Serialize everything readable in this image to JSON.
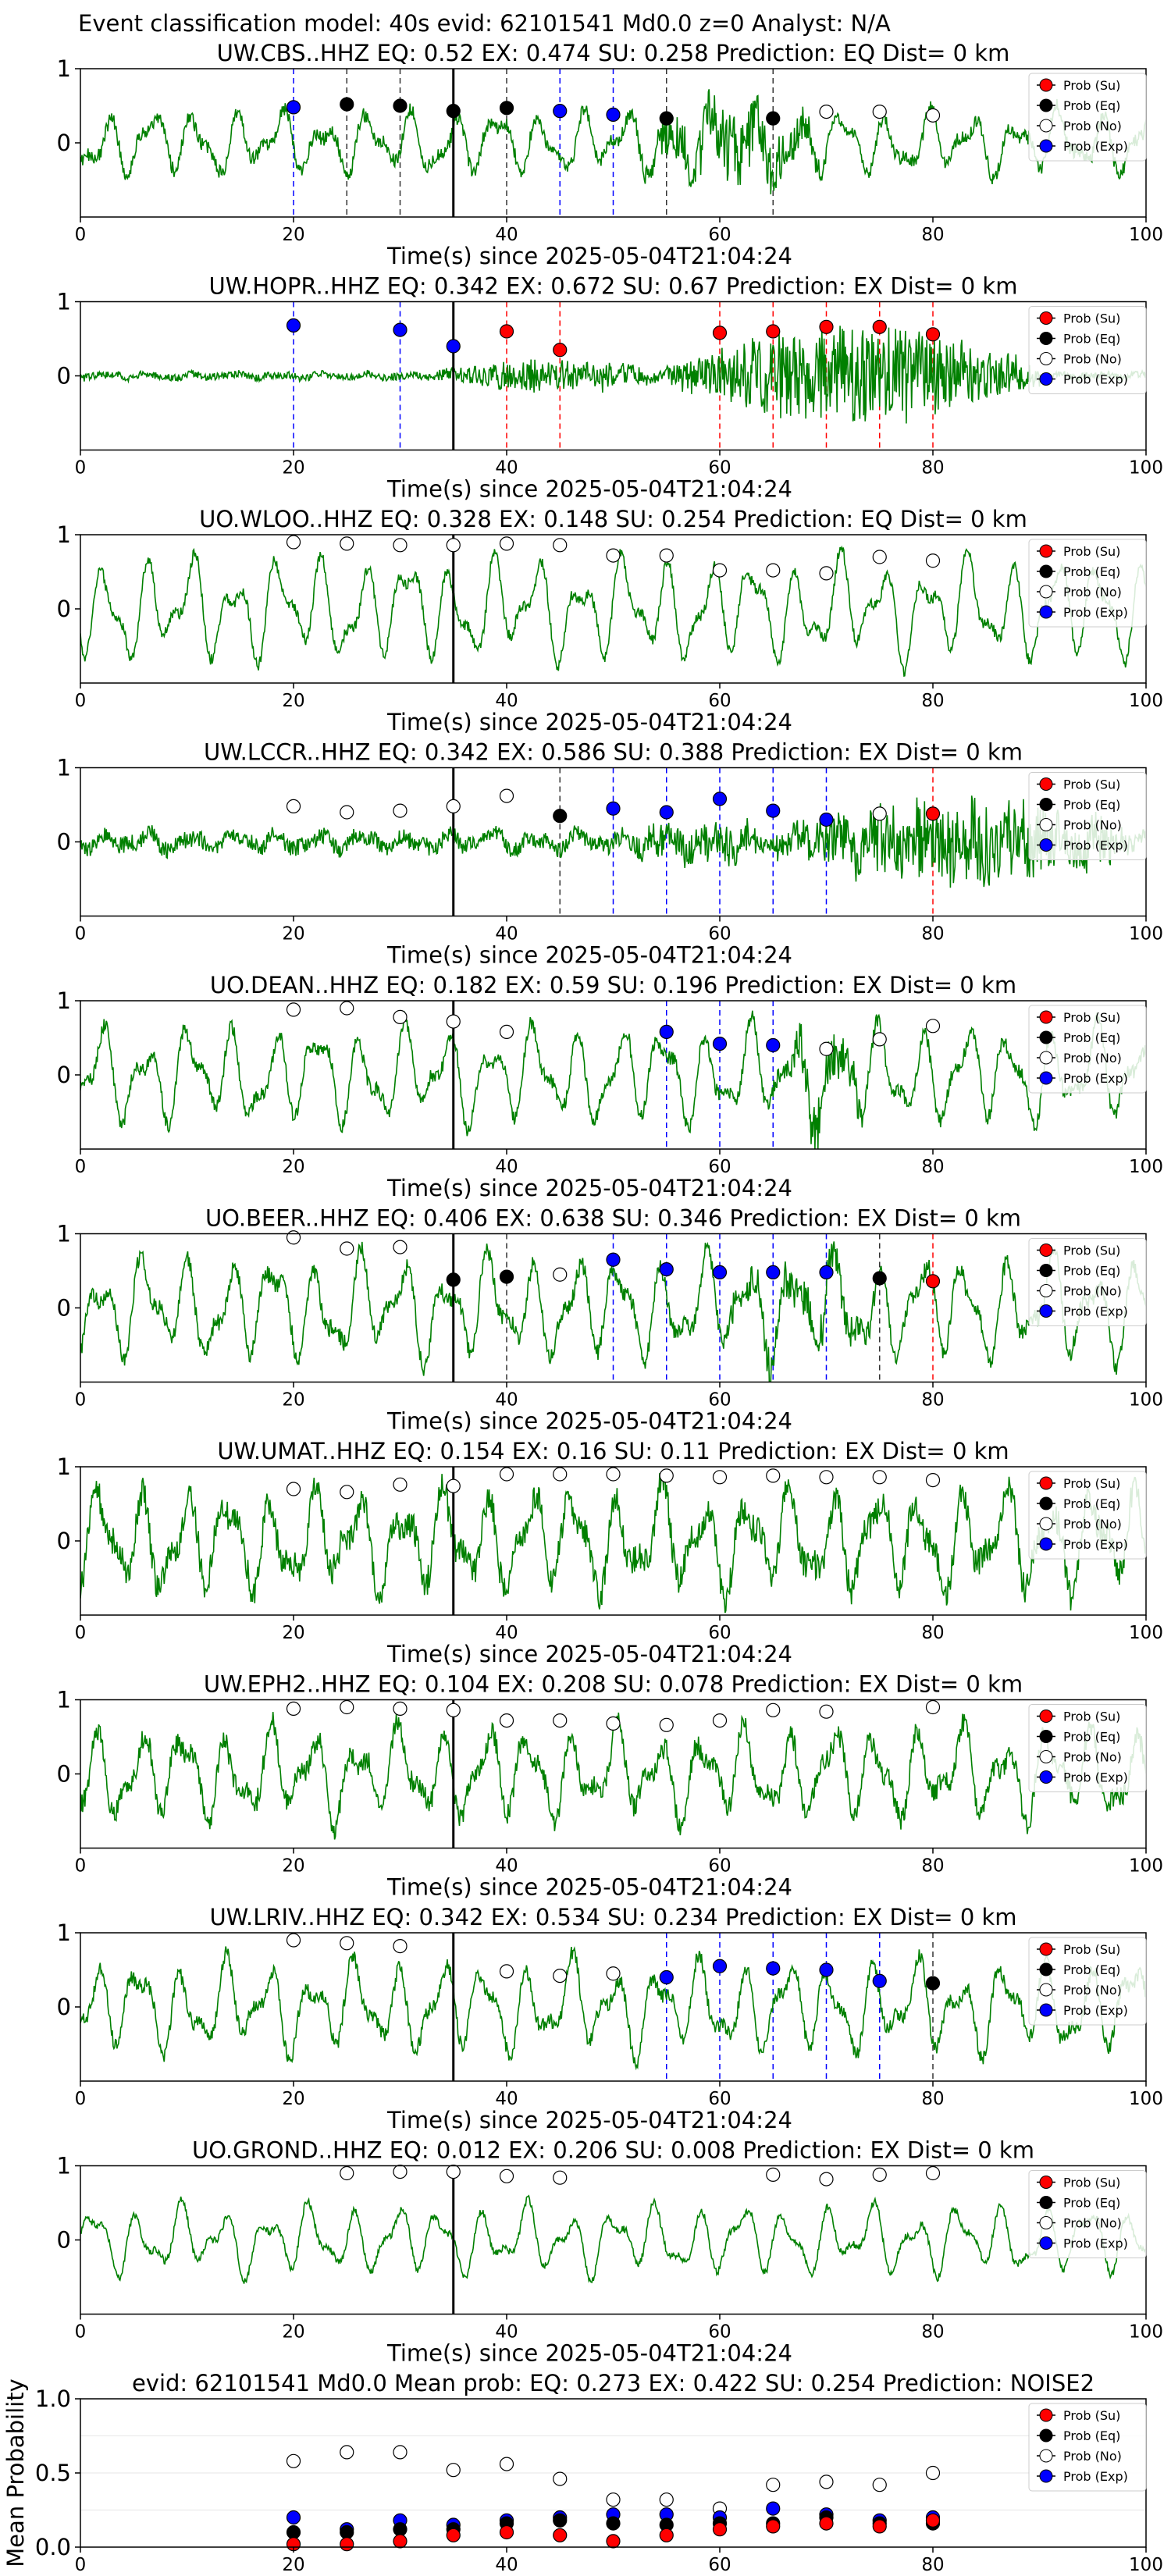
{
  "suptitle": "Event classification model: 40s evid: 62101541 Md0.0 z=0 Analyst: N/A",
  "legend_labels": [
    "Prob (Su)",
    "Prob (Eq)",
    "Prob (No)",
    "Prob (Exp)"
  ],
  "colors": {
    "Su": "#ff0000",
    "Eq": "#000000",
    "No": "#ffffff",
    "Exp": "#0000ff",
    "waveform": "#008000"
  },
  "xlabel": "Time(s) since 2025-05-04T21:04:24",
  "chart_data": [
    {
      "type": "line",
      "station": "UW.CBS..HHZ",
      "title": "UW.CBS..HHZ   EQ: 0.52   EX: 0.474   SU: 0.258   Prediction: EQ    Dist= 0 km",
      "xlim": [
        0,
        100
      ],
      "ylim": [
        -1,
        1
      ],
      "xticks": [
        "0",
        "20",
        "40",
        "60",
        "80",
        "100"
      ],
      "yticks": [
        "1",
        "0"
      ],
      "origin_time": 35,
      "points": [
        [
          20,
          0.48,
          "Exp"
        ],
        [
          25,
          0.52,
          "Eq"
        ],
        [
          30,
          0.5,
          "Eq"
        ],
        [
          35,
          0.43,
          "Eq"
        ],
        [
          40,
          0.47,
          "Eq"
        ],
        [
          45,
          0.43,
          "Exp"
        ],
        [
          50,
          0.38,
          "Exp"
        ],
        [
          55,
          0.33,
          "Eq"
        ],
        [
          65,
          0.33,
          "Eq"
        ],
        [
          70,
          0.42,
          "No"
        ],
        [
          75,
          0.42,
          "No"
        ],
        [
          80,
          0.37,
          "No"
        ]
      ]
    },
    {
      "type": "line",
      "station": "UW.HOPR..HHZ",
      "title": "UW.HOPR..HHZ   EQ: 0.342   EX: 0.672   SU: 0.67   Prediction: EX    Dist= 0 km",
      "xlim": [
        0,
        100
      ],
      "ylim": [
        -1,
        1
      ],
      "xticks": [
        "0",
        "20",
        "40",
        "60",
        "80",
        "100"
      ],
      "yticks": [
        "1",
        "0"
      ],
      "origin_time": 35,
      "points": [
        [
          20,
          0.68,
          "Exp"
        ],
        [
          30,
          0.62,
          "Exp"
        ],
        [
          35,
          0.4,
          "Exp"
        ],
        [
          40,
          0.6,
          "Su"
        ],
        [
          45,
          0.35,
          "Su"
        ],
        [
          60,
          0.58,
          "Su"
        ],
        [
          65,
          0.6,
          "Su"
        ],
        [
          70,
          0.66,
          "Su"
        ],
        [
          75,
          0.66,
          "Su"
        ],
        [
          80,
          0.56,
          "Su"
        ]
      ]
    },
    {
      "type": "line",
      "station": "UO.WLOO..HHZ",
      "title": "UO.WLOO..HHZ   EQ: 0.328   EX: 0.148   SU: 0.254   Prediction: EQ    Dist= 0 km",
      "xlim": [
        0,
        100
      ],
      "ylim": [
        -1,
        1
      ],
      "xticks": [
        "0",
        "20",
        "40",
        "60",
        "80",
        "100"
      ],
      "yticks": [
        "1",
        "0"
      ],
      "origin_time": 35,
      "points": [
        [
          20,
          0.9,
          "No"
        ],
        [
          25,
          0.88,
          "No"
        ],
        [
          30,
          0.86,
          "No"
        ],
        [
          35,
          0.86,
          "No"
        ],
        [
          40,
          0.88,
          "No"
        ],
        [
          45,
          0.86,
          "No"
        ],
        [
          50,
          0.72,
          "No"
        ],
        [
          55,
          0.72,
          "No"
        ],
        [
          60,
          0.52,
          "No"
        ],
        [
          65,
          0.52,
          "No"
        ],
        [
          70,
          0.48,
          "No"
        ],
        [
          75,
          0.7,
          "No"
        ],
        [
          80,
          0.65,
          "No"
        ]
      ]
    },
    {
      "type": "line",
      "station": "UW.LCCR..HHZ",
      "title": "UW.LCCR..HHZ   EQ: 0.342   EX: 0.586   SU: 0.388   Prediction: EX    Dist= 0 km",
      "xlim": [
        0,
        100
      ],
      "ylim": [
        -1,
        1
      ],
      "xticks": [
        "0",
        "20",
        "40",
        "60",
        "80",
        "100"
      ],
      "yticks": [
        "1",
        "0"
      ],
      "origin_time": 35,
      "points": [
        [
          20,
          0.48,
          "No"
        ],
        [
          25,
          0.4,
          "No"
        ],
        [
          30,
          0.42,
          "No"
        ],
        [
          35,
          0.48,
          "No"
        ],
        [
          40,
          0.62,
          "No"
        ],
        [
          45,
          0.35,
          "Eq"
        ],
        [
          50,
          0.45,
          "Exp"
        ],
        [
          55,
          0.4,
          "Exp"
        ],
        [
          60,
          0.58,
          "Exp"
        ],
        [
          65,
          0.42,
          "Exp"
        ],
        [
          70,
          0.3,
          "Exp"
        ],
        [
          75,
          0.38,
          "No"
        ],
        [
          80,
          0.38,
          "Su"
        ]
      ]
    },
    {
      "type": "line",
      "station": "UO.DEAN..HHZ",
      "title": "UO.DEAN..HHZ   EQ: 0.182   EX: 0.59   SU: 0.196   Prediction: EX    Dist= 0 km",
      "xlim": [
        0,
        100
      ],
      "ylim": [
        -1,
        1
      ],
      "xticks": [
        "0",
        "20",
        "40",
        "60",
        "80",
        "100"
      ],
      "yticks": [
        "1",
        "0"
      ],
      "origin_time": 35,
      "points": [
        [
          20,
          0.88,
          "No"
        ],
        [
          25,
          0.9,
          "No"
        ],
        [
          30,
          0.78,
          "No"
        ],
        [
          35,
          0.72,
          "No"
        ],
        [
          40,
          0.58,
          "No"
        ],
        [
          55,
          0.58,
          "Exp"
        ],
        [
          60,
          0.42,
          "Exp"
        ],
        [
          65,
          0.4,
          "Exp"
        ],
        [
          70,
          0.35,
          "No"
        ],
        [
          75,
          0.48,
          "No"
        ],
        [
          80,
          0.66,
          "No"
        ]
      ]
    },
    {
      "type": "line",
      "station": "UO.BEER..HHZ",
      "title": "UO.BEER..HHZ   EQ: 0.406   EX: 0.638   SU: 0.346   Prediction: EX    Dist= 0 km",
      "xlim": [
        0,
        100
      ],
      "ylim": [
        -1,
        1
      ],
      "xticks": [
        "0",
        "20",
        "40",
        "60",
        "80",
        "100"
      ],
      "yticks": [
        "1",
        "0"
      ],
      "origin_time": 35,
      "points": [
        [
          20,
          0.95,
          "No"
        ],
        [
          25,
          0.8,
          "No"
        ],
        [
          30,
          0.82,
          "No"
        ],
        [
          35,
          0.38,
          "Eq"
        ],
        [
          40,
          0.42,
          "Eq"
        ],
        [
          45,
          0.45,
          "No"
        ],
        [
          50,
          0.65,
          "Exp"
        ],
        [
          55,
          0.52,
          "Exp"
        ],
        [
          60,
          0.48,
          "Exp"
        ],
        [
          65,
          0.48,
          "Exp"
        ],
        [
          70,
          0.48,
          "Exp"
        ],
        [
          75,
          0.4,
          "Eq"
        ],
        [
          80,
          0.36,
          "Su"
        ]
      ]
    },
    {
      "type": "line",
      "station": "UW.UMAT..HHZ",
      "title": "UW.UMAT..HHZ   EQ: 0.154   EX: 0.16   SU: 0.11   Prediction: EX    Dist= 0 km",
      "xlim": [
        0,
        100
      ],
      "ylim": [
        -1,
        1
      ],
      "xticks": [
        "0",
        "20",
        "40",
        "60",
        "80",
        "100"
      ],
      "yticks": [
        "1",
        "0"
      ],
      "origin_time": 35,
      "points": [
        [
          20,
          0.7,
          "No"
        ],
        [
          25,
          0.66,
          "No"
        ],
        [
          30,
          0.76,
          "No"
        ],
        [
          35,
          0.74,
          "No"
        ],
        [
          40,
          0.9,
          "No"
        ],
        [
          45,
          0.9,
          "No"
        ],
        [
          50,
          0.9,
          "No"
        ],
        [
          55,
          0.88,
          "No"
        ],
        [
          60,
          0.86,
          "No"
        ],
        [
          65,
          0.88,
          "No"
        ],
        [
          70,
          0.86,
          "No"
        ],
        [
          75,
          0.86,
          "No"
        ],
        [
          80,
          0.82,
          "No"
        ]
      ]
    },
    {
      "type": "line",
      "station": "UW.EPH2..HHZ",
      "title": "UW.EPH2..HHZ   EQ: 0.104   EX: 0.208   SU: 0.078   Prediction: EX    Dist= 0 km",
      "xlim": [
        0,
        100
      ],
      "ylim": [
        -1,
        1
      ],
      "xticks": [
        "0",
        "20",
        "40",
        "60",
        "80",
        "100"
      ],
      "yticks": [
        "1",
        "0"
      ],
      "origin_time": 35,
      "points": [
        [
          20,
          0.88,
          "No"
        ],
        [
          25,
          0.9,
          "No"
        ],
        [
          30,
          0.88,
          "No"
        ],
        [
          35,
          0.86,
          "No"
        ],
        [
          40,
          0.72,
          "No"
        ],
        [
          45,
          0.72,
          "No"
        ],
        [
          50,
          0.68,
          "No"
        ],
        [
          55,
          0.66,
          "No"
        ],
        [
          60,
          0.72,
          "No"
        ],
        [
          65,
          0.86,
          "No"
        ],
        [
          70,
          0.84,
          "No"
        ],
        [
          80,
          0.9,
          "No"
        ]
      ]
    },
    {
      "type": "line",
      "station": "UW.LRIV..HHZ",
      "title": "UW.LRIV..HHZ   EQ: 0.342   EX: 0.534   SU: 0.234   Prediction: EX    Dist= 0 km",
      "xlim": [
        0,
        100
      ],
      "ylim": [
        -1,
        1
      ],
      "xticks": [
        "0",
        "20",
        "40",
        "60",
        "80",
        "100"
      ],
      "yticks": [
        "1",
        "0"
      ],
      "origin_time": 35,
      "points": [
        [
          20,
          0.9,
          "No"
        ],
        [
          25,
          0.86,
          "No"
        ],
        [
          30,
          0.82,
          "No"
        ],
        [
          40,
          0.48,
          "No"
        ],
        [
          45,
          0.42,
          "No"
        ],
        [
          50,
          0.45,
          "No"
        ],
        [
          55,
          0.4,
          "Exp"
        ],
        [
          60,
          0.55,
          "Exp"
        ],
        [
          65,
          0.52,
          "Exp"
        ],
        [
          70,
          0.5,
          "Exp"
        ],
        [
          75,
          0.35,
          "Exp"
        ],
        [
          80,
          0.32,
          "Eq"
        ]
      ]
    },
    {
      "type": "line",
      "station": "UO.GROND..HHZ",
      "title": "UO.GROND..HHZ   EQ: 0.012   EX: 0.206   SU: 0.008   Prediction: EX    Dist= 0 km",
      "xlim": [
        0,
        100
      ],
      "ylim": [
        -1,
        1
      ],
      "xticks": [
        "0",
        "20",
        "40",
        "60",
        "80",
        "100"
      ],
      "yticks": [
        "1",
        "0"
      ],
      "origin_time": 35,
      "points": [
        [
          25,
          0.9,
          "No"
        ],
        [
          30,
          0.92,
          "No"
        ],
        [
          35,
          0.92,
          "No"
        ],
        [
          40,
          0.86,
          "No"
        ],
        [
          45,
          0.84,
          "No"
        ],
        [
          65,
          0.88,
          "No"
        ],
        [
          70,
          0.82,
          "No"
        ],
        [
          75,
          0.88,
          "No"
        ],
        [
          80,
          0.9,
          "No"
        ]
      ]
    },
    {
      "type": "scatter",
      "station": "mean",
      "title": "evid: 62101541  Md0.0   Mean prob:   EQ: 0.273   EX: 0.422   SU: 0.254   Prediction: NOISE2",
      "ylabel": "Mean Probability",
      "xlim": [
        0,
        100
      ],
      "ylim": [
        0,
        1
      ],
      "xticks": [
        "0",
        "20",
        "40",
        "60",
        "80",
        "100"
      ],
      "yticks": [
        "1.0",
        "0.5",
        "0.0"
      ],
      "x": [
        20,
        25,
        30,
        35,
        40,
        45,
        50,
        55,
        60,
        65,
        70,
        75,
        80
      ],
      "series": [
        {
          "name": "Prob (No)",
          "cls": "No",
          "values": [
            0.58,
            0.64,
            0.64,
            0.52,
            0.56,
            0.46,
            0.32,
            0.32,
            0.26,
            0.42,
            0.44,
            0.42,
            0.5
          ]
        },
        {
          "name": "Prob (Exp)",
          "cls": "Exp",
          "values": [
            0.2,
            0.12,
            0.18,
            0.15,
            0.18,
            0.2,
            0.22,
            0.22,
            0.2,
            0.26,
            0.22,
            0.18,
            0.2
          ]
        },
        {
          "name": "Prob (Eq)",
          "cls": "Eq",
          "values": [
            0.1,
            0.1,
            0.12,
            0.12,
            0.16,
            0.18,
            0.16,
            0.15,
            0.16,
            0.16,
            0.2,
            0.16,
            0.16
          ]
        },
        {
          "name": "Prob (Su)",
          "cls": "Su",
          "values": [
            0.02,
            0.02,
            0.04,
            0.08,
            0.1,
            0.08,
            0.04,
            0.08,
            0.12,
            0.14,
            0.16,
            0.14,
            0.18
          ]
        }
      ]
    }
  ]
}
